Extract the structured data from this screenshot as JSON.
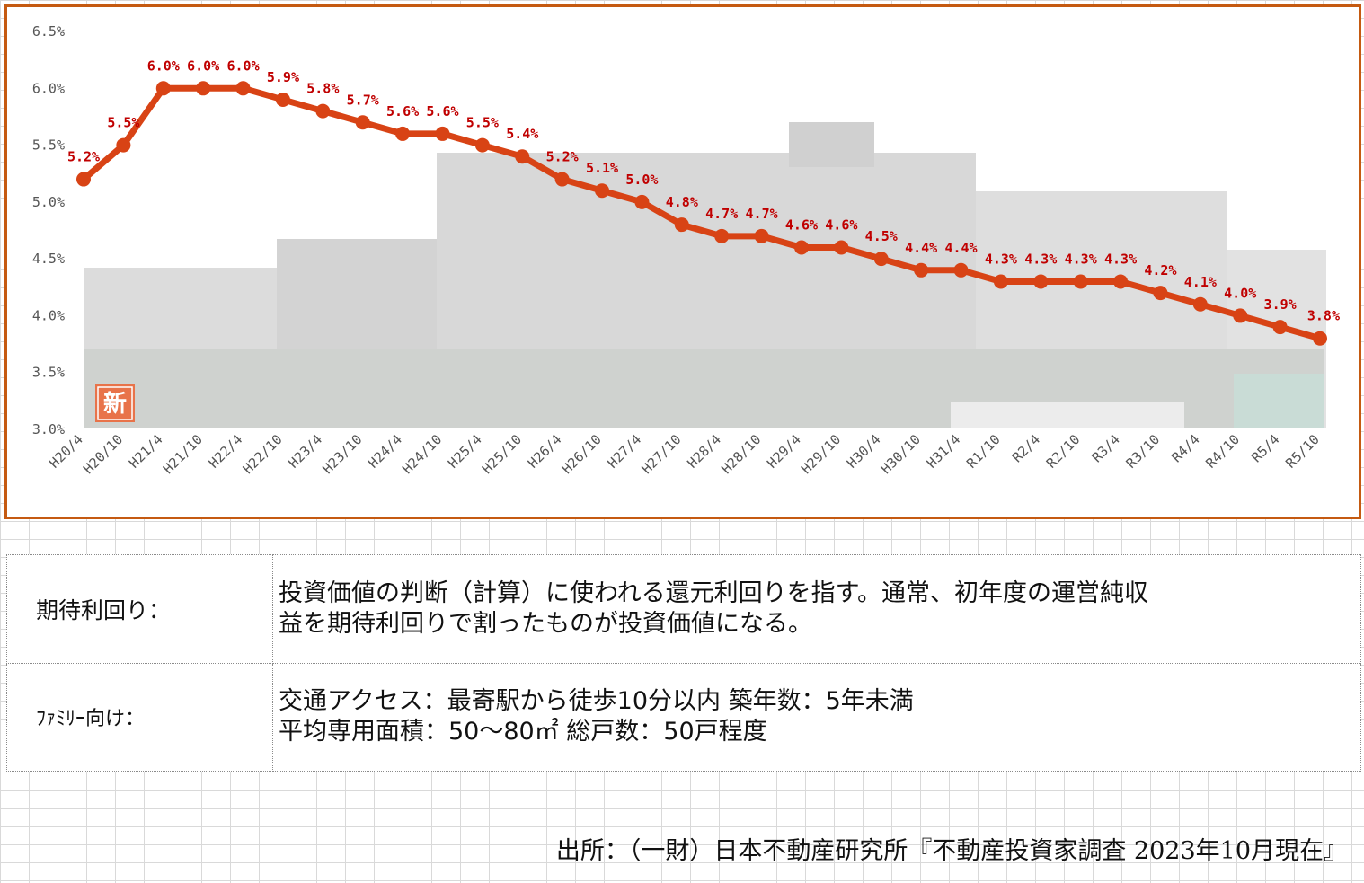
{
  "chart_data": {
    "type": "line",
    "categories": [
      "H20/4",
      "H20/10",
      "H21/4",
      "H21/10",
      "H22/4",
      "H22/10",
      "H23/4",
      "H23/10",
      "H24/4",
      "H24/10",
      "H25/4",
      "H25/10",
      "H26/4",
      "H26/10",
      "H27/4",
      "H27/10",
      "H28/4",
      "H28/10",
      "H29/4",
      "H29/10",
      "H30/4",
      "H30/10",
      "H31/4",
      "R1/10",
      "R2/4",
      "R2/10",
      "R3/4",
      "R3/10",
      "R4/4",
      "R4/10",
      "R5/4",
      "R5/10"
    ],
    "values": [
      5.2,
      5.5,
      6.0,
      6.0,
      6.0,
      5.9,
      5.8,
      5.7,
      5.6,
      5.6,
      5.5,
      5.4,
      5.2,
      5.1,
      5.0,
      4.8,
      4.7,
      4.7,
      4.6,
      4.6,
      4.5,
      4.4,
      4.4,
      4.3,
      4.3,
      4.3,
      4.3,
      4.2,
      4.1,
      4.0,
      3.9,
      3.8
    ],
    "data_labels": [
      "5.2%",
      "5.5%",
      "6.0%",
      "6.0%",
      "6.0%",
      "5.9%",
      "5.8%",
      "5.7%",
      "5.6%",
      "5.6%",
      "5.5%",
      "5.4%",
      "5.2%",
      "5.1%",
      "5.0%",
      "4.8%",
      "4.7%",
      "4.7%",
      "4.6%",
      "4.6%",
      "4.5%",
      "4.4%",
      "4.4%",
      "4.3%",
      "4.3%",
      "4.3%",
      "4.3%",
      "4.2%",
      "4.1%",
      "4.0%",
      "3.9%",
      "3.8%"
    ],
    "ylim": [
      3.0,
      6.5
    ],
    "yticks": [
      "3.0%",
      "3.5%",
      "4.0%",
      "4.5%",
      "5.0%",
      "5.5%",
      "6.0%",
      "6.5%"
    ],
    "title": "",
    "xlabel": "",
    "ylabel": "",
    "grid": false,
    "legend": "none",
    "line_color": "#d84315",
    "label_color": "#c00000",
    "frame_color": "#c55a11",
    "badge_text": "新"
  },
  "definitions": [
    {
      "term": "期待利回り：",
      "lines": [
        "投資価値の判断（計算）に使われる還元利回りを指す。通常、初年度の運営純収",
        "益を期待利回りで割ったものが投資価値になる。"
      ]
    },
    {
      "term": "ﾌｧﾐﾘｰ向け：",
      "lines": [
        "交通アクセス：最寄駅から徒歩10分以内 築年数：5年未満",
        "平均専用面積：50～80㎡ 総戸数：50戸程度"
      ]
    }
  ],
  "source": "出所：（一財）日本不動産研究所『不動産投資家調査 2023年10月現在』"
}
